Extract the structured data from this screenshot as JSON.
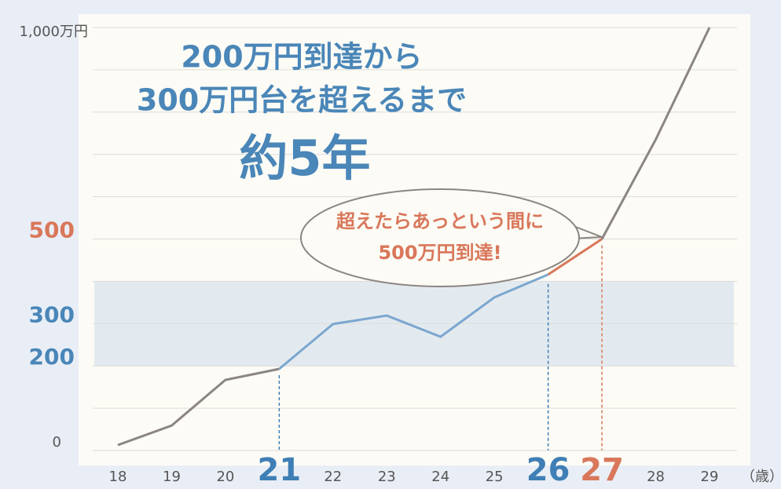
{
  "chart_data": {
    "type": "line",
    "categories": [
      "18",
      "19",
      "20",
      "21",
      "22",
      "23",
      "24",
      "25",
      "26",
      "27",
      "28",
      "29"
    ],
    "values": [
      13,
      59,
      167,
      193,
      299,
      319,
      269,
      362,
      416,
      500,
      735,
      1000
    ],
    "segments": [
      {
        "from": 0,
        "to": 3,
        "color": "#8c8582"
      },
      {
        "from": 3,
        "to": 8,
        "color": "#7ba7cf"
      },
      {
        "from": 8,
        "to": 9,
        "color": "#d9775a"
      },
      {
        "from": 9,
        "to": 11,
        "color": "#8c8582"
      }
    ],
    "highlights": [
      {
        "index": 3,
        "color": "#3f7fb5"
      },
      {
        "index": 8,
        "color": "#3f7fb5"
      },
      {
        "index": 9,
        "color": "#d9775a"
      }
    ],
    "ylim": [
      0,
      1000
    ],
    "yticks": [
      0,
      200,
      300,
      500,
      {
        "value": 1000,
        "label": "1,000万円"
      }
    ],
    "ytick_colors": [
      "#555555",
      "#4a86b8",
      "#4a86b8",
      "#d9775a",
      "#555555"
    ],
    "ygrid": [
      0,
      100,
      200,
      300,
      400,
      500,
      600,
      700,
      800,
      900,
      1000
    ],
    "band": [
      200,
      400
    ],
    "x_unit": "（歳）",
    "title_lines": [
      "200万円到達から",
      "300万円台を超えるまで",
      "約5年"
    ],
    "callout_lines": [
      "超えたらあっという間に",
      "500万円到達!"
    ]
  }
}
